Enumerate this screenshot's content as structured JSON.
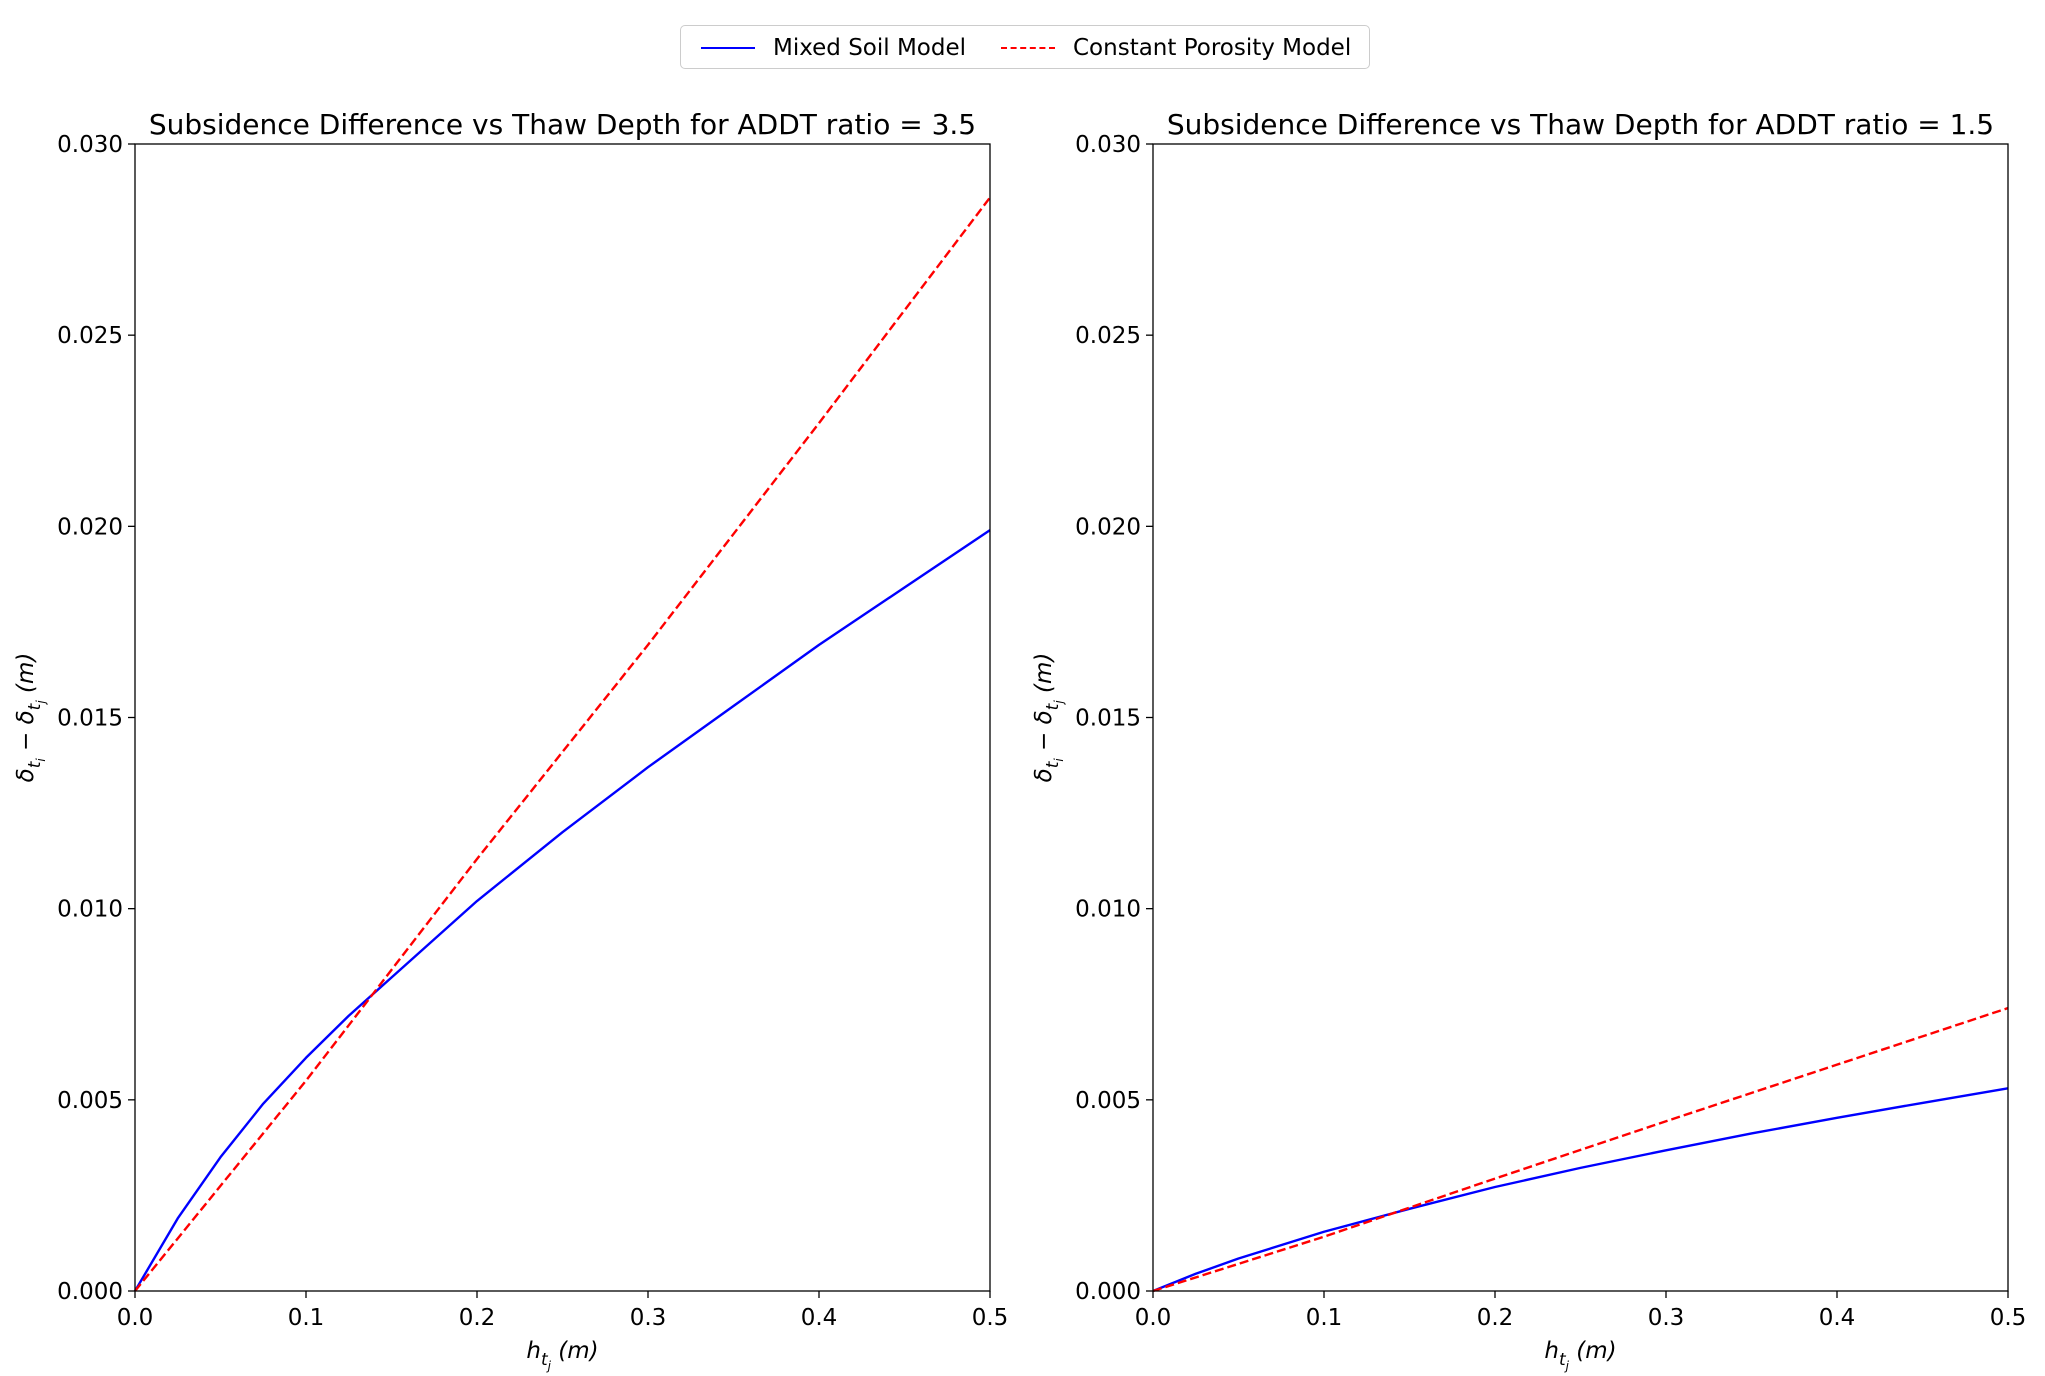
{
  "legend": {
    "entries": [
      {
        "label": "Mixed Soil Model",
        "color": "#0000ff",
        "style": "solid"
      },
      {
        "label": "Constant Porosity Model",
        "color": "#ff0000",
        "style": "dashed"
      }
    ]
  },
  "chart_data": [
    {
      "type": "line",
      "title": "Subsidence Difference vs Thaw Depth for ADDT ratio  = 3.5",
      "xlim": [
        0.0,
        0.5
      ],
      "ylim": [
        0.0,
        0.03
      ],
      "xticks": [
        "0.0",
        "0.1",
        "0.2",
        "0.3",
        "0.4",
        "0.5"
      ],
      "yticks": [
        "0.000",
        "0.005",
        "0.010",
        "0.015",
        "0.020",
        "0.025",
        "0.030"
      ],
      "grid": false,
      "series": [
        {
          "name": "Mixed Soil Model",
          "color": "#0000ff",
          "style": "solid",
          "x": [
            0.0,
            0.025,
            0.05,
            0.075,
            0.1,
            0.125,
            0.15,
            0.2,
            0.25,
            0.3,
            0.35,
            0.4,
            0.45,
            0.5
          ],
          "y": [
            0.0,
            0.0019,
            0.0035,
            0.0049,
            0.0061,
            0.0072,
            0.0082,
            0.0102,
            0.012,
            0.0137,
            0.0153,
            0.0169,
            0.0184,
            0.0199
          ]
        },
        {
          "name": "Constant Porosity Model",
          "color": "#ff0000",
          "style": "dashed",
          "x": [
            0.0,
            0.1,
            0.2,
            0.3,
            0.4,
            0.5
          ],
          "y": [
            0.0,
            0.0055,
            0.0113,
            0.0169,
            0.0227,
            0.0286
          ]
        }
      ]
    },
    {
      "type": "line",
      "title": "Subsidence Difference vs Thaw Depth for ADDT ratio  = 1.5",
      "xlim": [
        0.0,
        0.5
      ],
      "ylim": [
        0.0,
        0.03
      ],
      "xticks": [
        "0.0",
        "0.1",
        "0.2",
        "0.3",
        "0.4",
        "0.5"
      ],
      "yticks": [
        "0.000",
        "0.005",
        "0.010",
        "0.015",
        "0.020",
        "0.025",
        "0.030"
      ],
      "grid": false,
      "series": [
        {
          "name": "Mixed Soil Model",
          "color": "#0000ff",
          "style": "solid",
          "x": [
            0.0,
            0.025,
            0.05,
            0.1,
            0.15,
            0.2,
            0.25,
            0.3,
            0.35,
            0.4,
            0.45,
            0.5
          ],
          "y": [
            0.0,
            0.00045,
            0.00085,
            0.00155,
            0.00215,
            0.00272,
            0.00322,
            0.00368,
            0.00412,
            0.00453,
            0.00492,
            0.0053
          ]
        },
        {
          "name": "Constant Porosity Model",
          "color": "#ff0000",
          "style": "dashed",
          "x": [
            0.0,
            0.1,
            0.2,
            0.3,
            0.4,
            0.5
          ],
          "y": [
            0.0,
            0.00142,
            0.00294,
            0.00444,
            0.00592,
            0.0074
          ]
        }
      ]
    }
  ]
}
